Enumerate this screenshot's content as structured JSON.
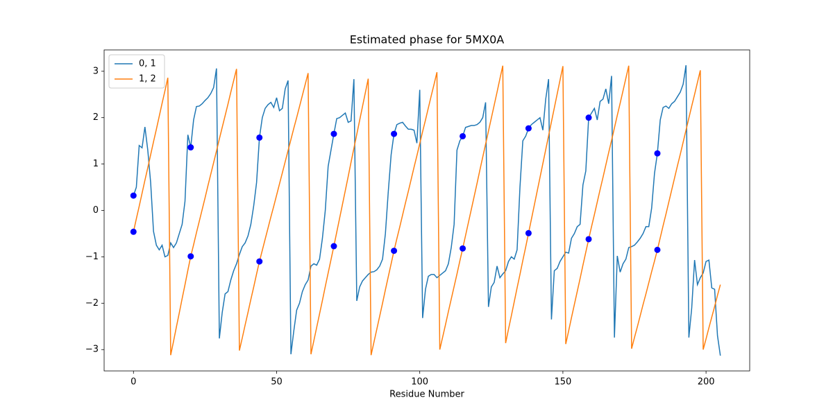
{
  "chart_data": {
    "type": "line",
    "title": "Estimated phase for 5MX0A",
    "x_label": "Residue Number",
    "x": [
      0,
      1,
      2,
      3,
      4,
      5,
      6,
      7,
      8,
      9,
      10,
      11,
      12,
      13,
      14,
      15,
      16,
      17,
      18,
      19,
      20,
      21,
      22,
      23,
      24,
      25,
      26,
      27,
      28,
      29,
      30,
      31,
      32,
      33,
      34,
      35,
      36,
      37,
      38,
      39,
      40,
      41,
      42,
      43,
      44,
      45,
      46,
      47,
      48,
      49,
      50,
      51,
      52,
      53,
      54,
      55,
      56,
      57,
      58,
      59,
      60,
      61,
      62,
      63,
      64,
      65,
      66,
      67,
      68,
      69,
      70,
      71,
      72,
      73,
      74,
      75,
      76,
      77,
      78,
      79,
      80,
      81,
      82,
      83,
      84,
      85,
      86,
      87,
      88,
      89,
      90,
      91,
      92,
      93,
      94,
      95,
      96,
      97,
      98,
      99,
      100,
      101,
      102,
      103,
      104,
      105,
      106,
      107,
      108,
      109,
      110,
      111,
      112,
      113,
      114,
      115,
      116,
      117,
      118,
      119,
      120,
      121,
      122,
      123,
      124,
      125,
      126,
      127,
      128,
      129,
      130,
      131,
      132,
      133,
      134,
      135,
      136,
      137,
      138,
      139,
      140,
      141,
      142,
      143,
      144,
      145,
      146,
      147,
      148,
      149,
      150,
      151,
      152,
      153,
      154,
      155,
      156,
      157,
      158,
      159,
      160,
      161,
      162,
      163,
      164,
      165,
      166,
      167,
      168,
      169,
      170,
      171,
      172,
      173,
      174,
      175,
      176,
      177,
      178,
      179,
      180,
      181,
      182,
      183,
      184,
      185,
      186,
      187,
      188,
      189,
      190,
      191,
      192,
      193,
      194,
      195,
      196,
      197,
      198,
      199,
      200,
      201,
      202,
      203,
      204,
      205
    ],
    "series": [
      {
        "name": "0, 1",
        "color": "#1f77b4",
        "values": [
          0.32,
          0.5,
          1.4,
          1.35,
          1.8,
          1.3,
          0.6,
          -0.45,
          -0.75,
          -0.85,
          -0.75,
          -1.0,
          -0.97,
          -0.7,
          -0.8,
          -0.7,
          -0.5,
          -0.3,
          0.2,
          1.63,
          1.36,
          1.95,
          2.24,
          2.25,
          2.3,
          2.37,
          2.43,
          2.52,
          2.65,
          3.06,
          -2.76,
          -2.2,
          -1.8,
          -1.75,
          -1.5,
          -1.3,
          -1.15,
          -0.95,
          -0.78,
          -0.7,
          -0.55,
          -0.3,
          0.1,
          0.6,
          1.57,
          2.0,
          2.2,
          2.28,
          2.33,
          2.22,
          2.43,
          2.15,
          2.2,
          2.62,
          2.8,
          -3.1,
          -2.6,
          -2.15,
          -2.0,
          -1.75,
          -1.6,
          -1.5,
          -1.2,
          -1.15,
          -1.18,
          -1.05,
          -0.6,
          0.0,
          0.95,
          1.3,
          1.65,
          1.98,
          2.0,
          2.05,
          2.1,
          1.9,
          1.93,
          2.83,
          -1.95,
          -1.65,
          -1.52,
          -1.45,
          -1.38,
          -1.33,
          -1.32,
          -1.28,
          -1.2,
          -1.05,
          -0.5,
          0.4,
          1.2,
          1.65,
          1.85,
          1.88,
          1.9,
          1.82,
          1.75,
          1.75,
          1.73,
          1.45,
          2.6,
          -2.32,
          -1.7,
          -1.42,
          -1.38,
          -1.38,
          -1.45,
          -1.4,
          -1.35,
          -1.3,
          -1.15,
          -0.8,
          -0.3,
          1.3,
          1.5,
          1.6,
          1.79,
          1.81,
          1.83,
          1.83,
          1.85,
          1.9,
          2.0,
          2.33,
          -2.08,
          -1.65,
          -1.55,
          -1.2,
          -1.45,
          -1.37,
          -1.3,
          -1.1,
          -1.0,
          -1.05,
          -0.85,
          0.5,
          1.5,
          1.6,
          1.77,
          1.85,
          1.9,
          1.95,
          2.0,
          1.73,
          2.4,
          2.83,
          -2.35,
          -1.3,
          -1.25,
          -1.1,
          -1.0,
          -0.9,
          -0.92,
          -0.6,
          -0.5,
          -0.35,
          -0.3,
          0.55,
          0.85,
          2.0,
          2.1,
          2.2,
          1.95,
          2.35,
          2.4,
          2.62,
          2.3,
          2.9,
          -2.74,
          -0.98,
          -1.33,
          -1.15,
          -1.05,
          -0.8,
          -0.78,
          -0.75,
          -0.68,
          -0.6,
          -0.5,
          -0.35,
          -0.35,
          0.05,
          0.8,
          1.23,
          1.95,
          2.22,
          2.25,
          2.2,
          2.3,
          2.35,
          2.45,
          2.55,
          2.72,
          3.13,
          -2.74,
          -2.1,
          -1.07,
          -1.6,
          -1.45,
          -1.35,
          -1.1,
          -1.07,
          -1.67,
          -1.7,
          -2.7,
          -3.13
        ]
      },
      {
        "name": "1, 2",
        "color": "#ff7f0e",
        "values": [
          -0.46,
          -0.18,
          0.09,
          0.37,
          0.65,
          0.92,
          1.2,
          1.48,
          1.75,
          2.03,
          2.31,
          2.58,
          2.86,
          -3.12,
          -2.82,
          -2.51,
          -2.21,
          -1.9,
          -1.6,
          -1.29,
          -0.99,
          -0.74,
          -0.48,
          -0.23,
          0.02,
          0.27,
          0.53,
          0.78,
          1.03,
          1.28,
          1.54,
          1.79,
          2.04,
          2.29,
          2.55,
          2.8,
          3.05,
          -3.02,
          -2.75,
          -2.47,
          -2.2,
          -1.92,
          -1.65,
          -1.37,
          -1.1,
          -0.86,
          -0.62,
          -0.38,
          -0.14,
          0.09,
          0.33,
          0.57,
          0.81,
          1.05,
          1.29,
          1.53,
          1.77,
          2.0,
          2.24,
          2.48,
          2.72,
          2.96,
          -3.1,
          -2.81,
          -2.52,
          -2.23,
          -1.94,
          -1.64,
          -1.35,
          -1.06,
          -0.77,
          -0.47,
          -0.17,
          0.13,
          0.43,
          0.73,
          1.04,
          1.34,
          1.64,
          1.94,
          2.24,
          2.54,
          2.84,
          -3.12,
          -2.84,
          -2.56,
          -2.28,
          -2.0,
          -1.71,
          -1.43,
          -1.15,
          -0.87,
          -0.61,
          -0.36,
          -0.1,
          0.16,
          0.41,
          0.67,
          0.93,
          1.18,
          1.44,
          1.7,
          1.95,
          2.21,
          2.47,
          2.72,
          2.98,
          -3.0,
          -2.73,
          -2.46,
          -2.18,
          -1.91,
          -1.64,
          -1.37,
          -1.09,
          -0.82,
          -0.54,
          -0.26,
          0.02,
          0.3,
          0.58,
          0.87,
          1.15,
          1.43,
          1.71,
          1.99,
          2.27,
          2.55,
          2.84,
          3.12,
          -2.86,
          -2.56,
          -2.27,
          -1.97,
          -1.67,
          -1.38,
          -1.08,
          -0.79,
          -0.49,
          -0.19,
          0.11,
          0.41,
          0.71,
          1.01,
          1.31,
          1.61,
          1.91,
          2.21,
          2.51,
          2.81,
          3.11,
          -2.88,
          -2.6,
          -2.31,
          -2.03,
          -1.75,
          -1.47,
          -1.18,
          -0.9,
          -0.62,
          -0.35,
          -0.09,
          0.18,
          0.45,
          0.71,
          0.98,
          1.25,
          1.51,
          1.78,
          2.05,
          2.31,
          2.58,
          2.85,
          3.12,
          -2.98,
          -2.74,
          -2.51,
          -2.27,
          -2.03,
          -1.8,
          -1.56,
          -1.32,
          -1.09,
          -0.85,
          -0.59,
          -0.33,
          -0.08,
          0.18,
          0.44,
          0.7,
          0.96,
          1.21,
          1.47,
          1.73,
          1.99,
          2.25,
          2.5,
          2.76,
          3.02,
          -3.0,
          -2.77,
          -2.53,
          -2.3,
          -2.07,
          -1.83,
          -1.6
        ]
      }
    ],
    "scatter": {
      "color": "blue",
      "x": [
        0,
        0,
        20,
        20,
        44,
        44,
        70,
        70,
        91,
        91,
        115,
        115,
        138,
        138,
        159,
        159,
        183,
        183
      ],
      "values": [
        0.32,
        -0.46,
        1.36,
        -0.99,
        1.57,
        -1.1,
        1.65,
        -0.77,
        1.65,
        -0.87,
        1.6,
        -0.82,
        1.77,
        -0.49,
        2.0,
        -0.62,
        1.23,
        -0.85
      ]
    },
    "xlim": [
      -10.25,
      215.25
    ],
    "ylim": [
      -3.46,
      3.46
    ],
    "xticks": [
      0,
      50,
      100,
      150,
      200
    ],
    "yticks": [
      {
        "value": -3,
        "label": "−3"
      },
      {
        "value": -2,
        "label": "−2"
      },
      {
        "value": -1,
        "label": "−1"
      },
      0,
      1,
      2,
      3
    ],
    "legend": "upper left"
  }
}
